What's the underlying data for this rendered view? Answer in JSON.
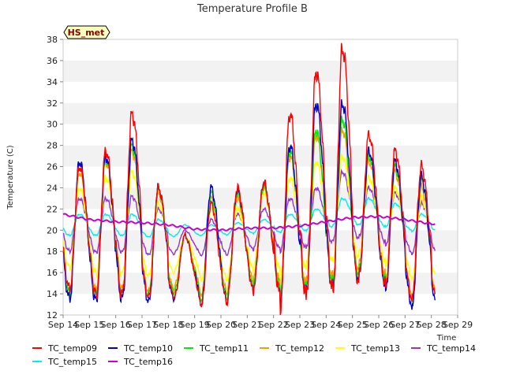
{
  "chart_data": {
    "type": "line",
    "title": "Temperature Profile B",
    "xlabel": "Time",
    "ylabel": "Temperature (C)",
    "ylim": [
      12,
      38
    ],
    "yticks": [
      12,
      14,
      16,
      18,
      20,
      22,
      24,
      26,
      28,
      30,
      32,
      34,
      36,
      38
    ],
    "xlim": [
      "Sep 14",
      "Sep 29"
    ],
    "xticks": [
      "Sep 14",
      "Sep 15",
      "Sep 16",
      "Sep 17",
      "Sep 18",
      "Sep 19",
      "Sep 20",
      "Sep 21",
      "Sep 22",
      "Sep 23",
      "Sep 24",
      "Sep 25",
      "Sep 26",
      "Sep 27",
      "Sep 28",
      "Sep 29"
    ],
    "grid": "horizontal bands",
    "legend_position": "bottom",
    "site_badge": "HS_met",
    "series": [
      {
        "name": "TC_temp09",
        "color": "#ff0000"
      },
      {
        "name": "TC_temp10",
        "color": "#0000cc"
      },
      {
        "name": "TC_temp11",
        "color": "#00ee00"
      },
      {
        "name": "TC_temp12",
        "color": "#ff9900"
      },
      {
        "name": "TC_temp13",
        "color": "#ffff00"
      },
      {
        "name": "TC_temp14",
        "color": "#9933cc"
      },
      {
        "name": "TC_temp15",
        "color": "#00eeee"
      },
      {
        "name": "TC_temp16",
        "color": "#cc00cc"
      }
    ],
    "daily_values": {
      "dates": [
        "Sep 14",
        "Sep 15",
        "Sep 16",
        "Sep 17",
        "Sep 18",
        "Sep 19",
        "Sep 20",
        "Sep 21",
        "Sep 22",
        "Sep 23",
        "Sep 24",
        "Sep 25",
        "Sep 26",
        "Sep 27",
        "Sep 28"
      ],
      "TC_temp09_min": [
        14.5,
        13.5,
        14.0,
        13.5,
        14.0,
        12.5,
        13.5,
        15.0,
        12.5,
        14.5,
        14.0,
        16.0,
        14.5,
        13.0,
        14.0
      ],
      "TC_temp09_max": [
        26.0,
        27.5,
        31.0,
        24.0,
        19.5,
        22.5,
        24.0,
        24.5,
        31.0,
        35.0,
        37.2,
        29.0,
        27.5,
        26.0,
        20.0
      ],
      "TC_temp10_min": [
        13.5,
        13.2,
        13.6,
        13.0,
        14.0,
        12.6,
        13.6,
        15.0,
        13.0,
        14.5,
        14.5,
        16.0,
        14.2,
        12.1,
        13.5
      ],
      "TC_temp10_max": [
        26.5,
        27.0,
        28.5,
        24.0,
        19.5,
        24.0,
        23.8,
        24.5,
        28.0,
        32.0,
        32.0,
        27.5,
        26.5,
        25.0,
        20.0
      ],
      "TC_temp11_min": [
        14.0,
        13.8,
        14.0,
        13.8,
        14.5,
        13.0,
        14.0,
        15.5,
        13.5,
        15.0,
        15.0,
        16.5,
        14.8,
        12.8,
        14.0
      ],
      "TC_temp11_max": [
        26.0,
        26.8,
        28.0,
        24.0,
        19.5,
        23.5,
        23.5,
        24.2,
        27.5,
        29.5,
        30.5,
        27.0,
        26.0,
        24.8,
        20.0
      ],
      "TC_temp12_min": [
        14.5,
        14.2,
        14.5,
        14.0,
        15.0,
        13.5,
        14.5,
        16.0,
        14.0,
        15.5,
        15.5,
        17.0,
        15.2,
        13.2,
        14.5
      ],
      "TC_temp12_max": [
        25.5,
        26.5,
        27.5,
        23.5,
        19.5,
        23.0,
        23.0,
        24.0,
        27.0,
        29.0,
        29.5,
        26.5,
        25.5,
        24.0,
        20.0
      ],
      "TC_temp13_min": [
        16.5,
        15.5,
        16.0,
        15.5,
        16.5,
        15.0,
        15.5,
        17.0,
        15.5,
        17.0,
        17.0,
        18.0,
        16.5,
        15.0,
        16.0
      ],
      "TC_temp13_max": [
        24.0,
        25.0,
        25.5,
        22.5,
        19.5,
        22.0,
        22.0,
        23.5,
        25.0,
        26.5,
        27.0,
        25.0,
        24.0,
        23.0,
        19.5
      ],
      "TC_temp14_min": [
        18.0,
        17.8,
        18.0,
        17.5,
        18.0,
        17.5,
        17.8,
        18.5,
        18.0,
        18.5,
        19.0,
        19.5,
        18.5,
        17.5,
        18.0
      ],
      "TC_temp14_max": [
        23.0,
        23.0,
        23.2,
        22.0,
        20.0,
        21.0,
        21.5,
        22.0,
        23.0,
        24.0,
        25.5,
        24.0,
        23.5,
        22.5,
        21.5
      ],
      "TC_temp15_min": [
        19.5,
        19.5,
        19.5,
        19.3,
        19.5,
        19.5,
        19.6,
        19.8,
        19.8,
        20.0,
        20.5,
        20.5,
        20.3,
        19.8,
        20.0
      ],
      "TC_temp15_max": [
        21.5,
        21.5,
        21.5,
        21.0,
        20.5,
        20.5,
        20.7,
        21.0,
        21.5,
        22.0,
        23.0,
        23.0,
        22.5,
        21.5,
        21.0
      ],
      "TC_temp16": [
        21.5,
        21.0,
        20.8,
        20.7,
        20.5,
        20.1,
        20.0,
        20.2,
        20.2,
        20.4,
        20.8,
        21.2,
        21.3,
        21.0,
        20.6
      ]
    }
  }
}
